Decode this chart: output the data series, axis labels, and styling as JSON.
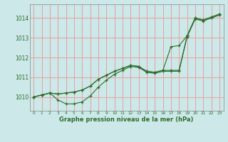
{
  "bg_color": "#cce8e8",
  "grid_color": "#e8a0a0",
  "line_color": "#2d6e2d",
  "title": "Graphe pression niveau de la mer (hPa)",
  "xlim": [
    -0.5,
    23.5
  ],
  "ylim": [
    1009.3,
    1014.7
  ],
  "xticks": [
    0,
    1,
    2,
    3,
    4,
    5,
    6,
    7,
    8,
    9,
    10,
    11,
    12,
    13,
    14,
    15,
    16,
    17,
    18,
    19,
    20,
    21,
    22,
    23
  ],
  "yticks": [
    1010,
    1011,
    1012,
    1013,
    1014
  ],
  "line1": [
    1010.0,
    1010.1,
    1010.2,
    1010.15,
    1010.2,
    1010.25,
    1010.35,
    1010.55,
    1010.9,
    1011.1,
    1011.3,
    1011.45,
    1011.6,
    1011.55,
    1011.3,
    1011.25,
    1011.35,
    1011.35,
    1011.35,
    1013.1,
    1014.0,
    1013.9,
    1014.05,
    1014.2
  ],
  "line2": [
    1010.0,
    1010.1,
    1010.2,
    1009.85,
    1009.65,
    1009.65,
    1009.75,
    1010.05,
    1010.5,
    1010.85,
    1011.15,
    1011.35,
    1011.55,
    1011.5,
    1011.25,
    1011.2,
    1011.3,
    1011.3,
    1011.3,
    1013.05,
    1013.95,
    1013.85,
    1014.0,
    1014.15
  ],
  "line3": [
    1010.0,
    1010.1,
    1010.2,
    1010.15,
    1010.2,
    1010.25,
    1010.35,
    1010.55,
    1010.9,
    1011.1,
    1011.3,
    1011.45,
    1011.6,
    1011.55,
    1011.3,
    1011.25,
    1011.35,
    1012.55,
    1012.6,
    1013.1,
    1014.0,
    1013.9,
    1014.05,
    1014.2
  ]
}
